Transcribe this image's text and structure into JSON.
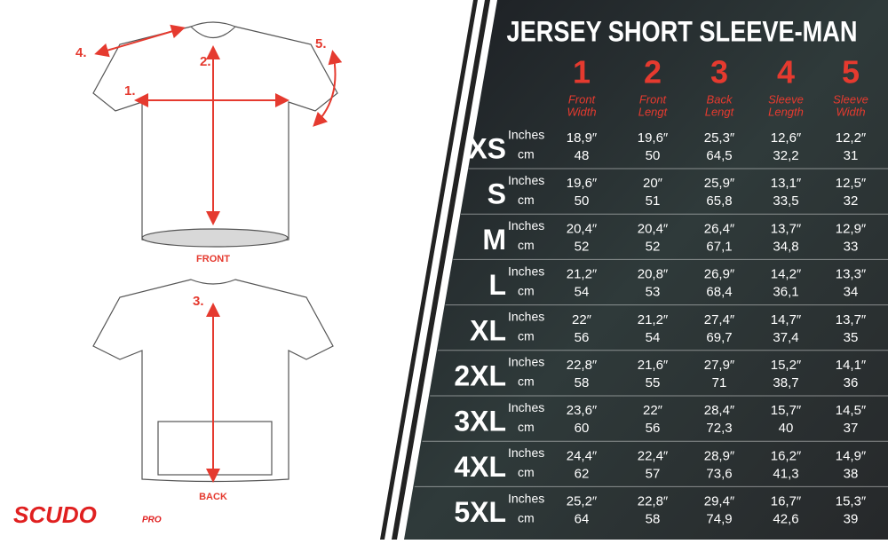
{
  "title": "JERSEY SHORT SLEEVE-MAN",
  "columns": [
    {
      "number": "1",
      "label": [
        "Front",
        "Width"
      ]
    },
    {
      "number": "2",
      "label": [
        "Front",
        "Lengt"
      ]
    },
    {
      "number": "3",
      "label": [
        "Back",
        "Lengt"
      ]
    },
    {
      "number": "4",
      "label": [
        "Sleeve",
        "Length"
      ]
    },
    {
      "number": "5",
      "label": [
        "Sleeve",
        "Width"
      ]
    }
  ],
  "unit_labels": {
    "inches": "Inches",
    "cm": "cm"
  },
  "rows": [
    {
      "size": "XS",
      "inches": [
        "18,9″",
        "19,6″",
        "25,3″",
        "12,6″",
        "12,2″"
      ],
      "cm": [
        "48",
        "50",
        "64,5",
        "32,2",
        "31"
      ]
    },
    {
      "size": "S",
      "inches": [
        "19,6″",
        "20″",
        "25,9″",
        "13,1″",
        "12,5″"
      ],
      "cm": [
        "50",
        "51",
        "65,8",
        "33,5",
        "32"
      ]
    },
    {
      "size": "M",
      "inches": [
        "20,4″",
        "20,4″",
        "26,4″",
        "13,7″",
        "12,9″"
      ],
      "cm": [
        "52",
        "52",
        "67,1",
        "34,8",
        "33"
      ]
    },
    {
      "size": "L",
      "inches": [
        "21,2″",
        "20,8″",
        "26,9″",
        "14,2″",
        "13,3″"
      ],
      "cm": [
        "54",
        "53",
        "68,4",
        "36,1",
        "34"
      ]
    },
    {
      "size": "XL",
      "inches": [
        "22″",
        "21,2″",
        "27,4″",
        "14,7″",
        "13,7″"
      ],
      "cm": [
        "56",
        "54",
        "69,7",
        "37,4",
        "35"
      ]
    },
    {
      "size": "2XL",
      "inches": [
        "22,8″",
        "21,6″",
        "27,9″",
        "15,2″",
        "14,1″"
      ],
      "cm": [
        "58",
        "55",
        "71",
        "38,7",
        "36"
      ]
    },
    {
      "size": "3XL",
      "inches": [
        "23,6″",
        "22″",
        "28,4″",
        "15,7″",
        "14,5″"
      ],
      "cm": [
        "60",
        "56",
        "72,3",
        "40",
        "37"
      ]
    },
    {
      "size": "4XL",
      "inches": [
        "24,4″",
        "22,4″",
        "28,9″",
        "16,2″",
        "14,9″"
      ],
      "cm": [
        "62",
        "57",
        "73,6",
        "41,3",
        "38"
      ]
    },
    {
      "size": "5XL",
      "inches": [
        "25,2″",
        "22,8″",
        "29,4″",
        "16,7″",
        "15,3″"
      ],
      "cm": [
        "64",
        "58",
        "74,9",
        "42,6",
        "39"
      ]
    }
  ],
  "diagram": {
    "front_labels": [
      "4.",
      "2.",
      "5.",
      "1."
    ],
    "front_caption": "FRONT",
    "back_labels": [
      "3."
    ],
    "back_caption": "BACK"
  },
  "brand": {
    "name": "SCUDO",
    "suffix": "PRO"
  }
}
